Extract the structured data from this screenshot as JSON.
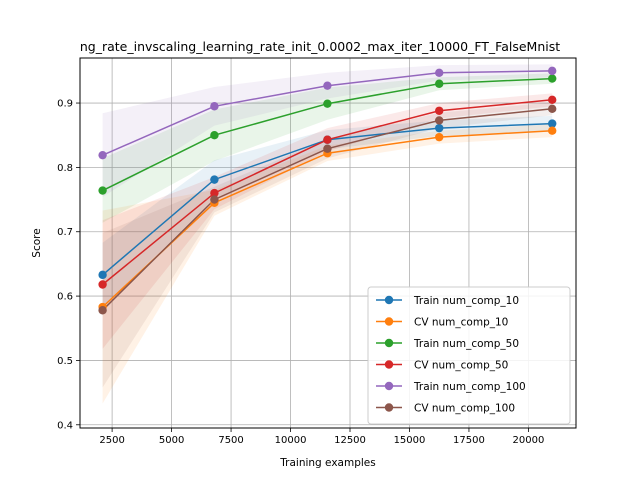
{
  "chart_data": {
    "type": "line",
    "title": "ng_rate_invscaling_learning_rate_init_0.0002_max_iter_10000_FT_FalseMnist",
    "xlabel": "Training examples",
    "ylabel": "Score",
    "xlim": [
      1150,
      22000
    ],
    "ylim": [
      0.395,
      0.97
    ],
    "xticks": [
      2500,
      5000,
      7500,
      10000,
      12500,
      15000,
      17500,
      20000
    ],
    "xtick_labels": [
      "2500",
      "5000",
      "7500",
      "10000",
      "12500",
      "15000",
      "17500",
      "20000"
    ],
    "yticks": [
      0.4,
      0.5,
      0.6,
      0.7,
      0.8,
      0.9
    ],
    "ytick_labels": [
      "0.4",
      "0.5",
      "0.6",
      "0.7",
      "0.8",
      "0.9"
    ],
    "grid": true,
    "legend_position": "lower-right",
    "x": [
      2100,
      6800,
      11550,
      16250,
      21000
    ],
    "series": [
      {
        "name": "Train num_comp_10",
        "color": "#1f77b4",
        "values": [
          0.633,
          0.781,
          0.843,
          0.861,
          0.868
        ],
        "band": [
          0.05,
          0.03,
          0.015,
          0.012,
          0.012
        ]
      },
      {
        "name": "CV num_comp_10",
        "color": "#ff7f0e",
        "values": [
          0.583,
          0.745,
          0.822,
          0.847,
          0.857
        ],
        "band": [
          0.15,
          0.02,
          0.012,
          0.01,
          0.01
        ]
      },
      {
        "name": "Train num_comp_50",
        "color": "#2ca02c",
        "values": [
          0.764,
          0.85,
          0.899,
          0.93,
          0.938
        ],
        "band": [
          0.05,
          0.04,
          0.025,
          0.01,
          0.008
        ]
      },
      {
        "name": "CV num_comp_50",
        "color": "#d62728",
        "values": [
          0.618,
          0.76,
          0.843,
          0.888,
          0.905
        ],
        "band": [
          0.1,
          0.025,
          0.018,
          0.012,
          0.01
        ]
      },
      {
        "name": "Train num_comp_100",
        "color": "#9467bd",
        "values": [
          0.819,
          0.895,
          0.927,
          0.947,
          0.95
        ],
        "band": [
          0.065,
          0.03,
          0.02,
          0.012,
          0.01
        ]
      },
      {
        "name": "CV num_comp_100",
        "color": "#8c564b",
        "values": [
          0.578,
          0.75,
          0.829,
          0.873,
          0.891
        ],
        "band": [
          0.12,
          0.02,
          0.015,
          0.012,
          0.01
        ]
      }
    ]
  }
}
